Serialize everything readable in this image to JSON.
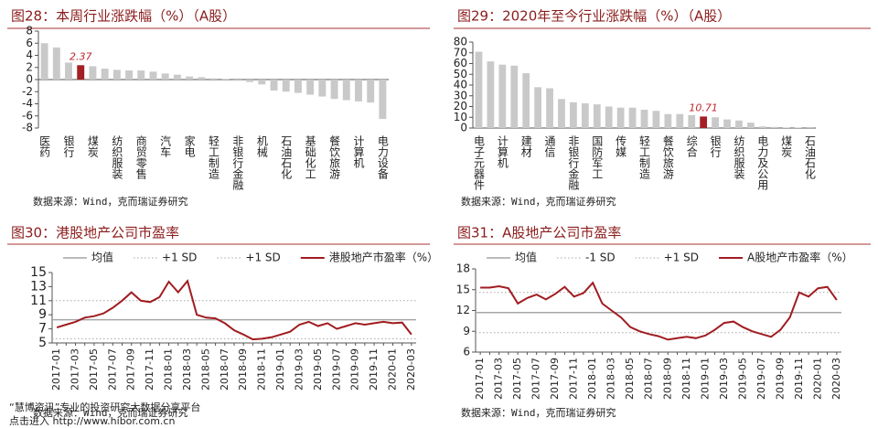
{
  "chart_data": [
    {
      "type": "bar",
      "title": "图28：本周行业涨跌幅（%）（A股）",
      "categories": [
        "医药",
        null,
        "银行",
        null,
        "煤炭",
        null,
        "纺织服装",
        null,
        "商贸零售",
        null,
        "汽车",
        null,
        "家电",
        null,
        "轻工制造",
        null,
        "非银行金融",
        null,
        "机械",
        null,
        "石油石化",
        null,
        "基础化工",
        null,
        "餐饮旅游",
        null,
        "计算机",
        null,
        "电力设备"
      ],
      "values": [
        6.0,
        5.3,
        2.8,
        2.37,
        2.2,
        1.8,
        1.6,
        1.5,
        1.5,
        1.3,
        1.0,
        0.8,
        0.5,
        0.4,
        0.2,
        0.1,
        -0.2,
        -0.4,
        -0.8,
        -1.8,
        -2.0,
        -2.2,
        -2.5,
        -2.8,
        -3.2,
        -3.4,
        -3.6,
        -3.8,
        -6.5
      ],
      "value_labels": [
        null,
        null,
        null,
        "2.37",
        null,
        null,
        null,
        null,
        null,
        null,
        null,
        null,
        null,
        null,
        null,
        null,
        null,
        null,
        null,
        null,
        null,
        null,
        null,
        null,
        null,
        null,
        null,
        null,
        null
      ],
      "colors": [
        "#c9c9c9",
        "#c9c9c9",
        "#c9c9c9",
        "#a31f24",
        "#c9c9c9",
        "#c9c9c9",
        "#c9c9c9",
        "#c9c9c9",
        "#c9c9c9",
        "#c9c9c9",
        "#c9c9c9",
        "#c9c9c9",
        "#c9c9c9",
        "#c9c9c9",
        "#c9c9c9",
        "#c9c9c9",
        "#c9c9c9",
        "#c9c9c9",
        "#c9c9c9",
        "#c9c9c9",
        "#c9c9c9",
        "#c9c9c9",
        "#c9c9c9",
        "#c9c9c9",
        "#c9c9c9",
        "#c9c9c9",
        "#c9c9c9",
        "#c9c9c9",
        "#c9c9c9"
      ],
      "ylim": [
        -8,
        8
      ],
      "yticks": [
        -8,
        -6,
        -4,
        -2,
        0,
        2,
        4,
        6,
        8
      ],
      "source": "数据来源：Wind，克而瑞证券研究"
    },
    {
      "type": "bar",
      "title": "图29：2020年至今行业涨跌幅（%）（A股）",
      "categories": [
        "电子元器件",
        null,
        "计算机",
        null,
        "建材",
        null,
        "通信",
        null,
        "非银行金融",
        null,
        "国防军工",
        null,
        "传媒",
        null,
        "轻工制造",
        null,
        "餐饮旅游",
        null,
        "综合",
        null,
        "银行",
        null,
        "纺织服装",
        null,
        "电力及公用",
        null,
        "煤炭",
        null,
        "石油石化"
      ],
      "values": [
        71,
        62,
        59,
        58,
        51,
        38,
        37,
        27,
        24,
        23,
        22,
        20,
        19,
        19,
        17,
        16,
        13,
        13,
        12,
        10.71,
        10,
        8,
        7,
        5,
        1.5,
        1,
        0.5,
        0.4,
        0.2
      ],
      "value_labels": [
        null,
        null,
        null,
        null,
        null,
        null,
        null,
        null,
        null,
        null,
        null,
        null,
        null,
        null,
        null,
        null,
        null,
        null,
        null,
        "10.71",
        null,
        null,
        null,
        null,
        null,
        null,
        null,
        null,
        null
      ],
      "colors": [
        "#c9c9c9",
        "#c9c9c9",
        "#c9c9c9",
        "#c9c9c9",
        "#c9c9c9",
        "#c9c9c9",
        "#c9c9c9",
        "#c9c9c9",
        "#c9c9c9",
        "#c9c9c9",
        "#c9c9c9",
        "#c9c9c9",
        "#c9c9c9",
        "#c9c9c9",
        "#c9c9c9",
        "#c9c9c9",
        "#c9c9c9",
        "#c9c9c9",
        "#c9c9c9",
        "#a31f24",
        "#c9c9c9",
        "#c9c9c9",
        "#c9c9c9",
        "#c9c9c9",
        "#c9c9c9",
        "#c9c9c9",
        "#c9c9c9",
        "#c9c9c9",
        "#c9c9c9"
      ],
      "ylim": [
        0,
        80
      ],
      "yticks": [
        0,
        10,
        20,
        30,
        40,
        50,
        60,
        70,
        80
      ],
      "source": "数据来源：Wind，克而瑞证券研究"
    },
    {
      "type": "line",
      "title": "图30：港股地产公司市盈率",
      "categories": [
        "2017-01",
        null,
        "2017-03",
        null,
        "2017-05",
        null,
        "2017-07",
        null,
        "2017-09",
        null,
        "2017-11",
        null,
        "2018-01",
        null,
        "2018-03",
        null,
        "2018-05",
        null,
        "2018-07",
        null,
        "2018-09",
        null,
        "2018-11",
        null,
        "2019-01",
        null,
        "2019-03",
        null,
        "2019-05",
        null,
        "2019-07",
        null,
        "2019-09",
        null,
        "2019-11",
        null,
        "2020-01",
        null,
        "2020-03"
      ],
      "hlines": [
        {
          "name": "均值",
          "value": 8.3,
          "color": "#a6a6a6",
          "dash": false
        },
        {
          "name": "+1 SD",
          "value": 11.0,
          "color": "#a6a6a6",
          "dash": true
        },
        {
          "name": "+1 SD",
          "value": 5.6,
          "color": "#a6a6a6",
          "dash": true
        }
      ],
      "series": [
        {
          "name": "港股地产市盈率（%）",
          "color": "#a01c20",
          "values": [
            7.2,
            7.6,
            8.0,
            8.6,
            8.8,
            9.2,
            10.0,
            11.0,
            12.2,
            11.0,
            10.8,
            11.5,
            13.7,
            12.2,
            13.8,
            9.0,
            8.6,
            8.5,
            7.8,
            6.8,
            6.2,
            5.5,
            5.6,
            5.8,
            6.2,
            6.6,
            7.6,
            8.0,
            7.4,
            7.8,
            7.0,
            7.4,
            7.8,
            7.6,
            7.8,
            8.0,
            7.8,
            7.9,
            6.2
          ]
        }
      ],
      "ylim": [
        5,
        15
      ],
      "yticks": [
        5,
        7,
        9,
        11,
        13,
        15
      ],
      "source": "数据来源：Wind，克而瑞证券研究"
    },
    {
      "type": "line",
      "title": "图31：A股地产公司市盈率",
      "categories": [
        "2017-01",
        null,
        "2017-03",
        null,
        "2017-05",
        null,
        "2017-07",
        null,
        "2017-09",
        null,
        "2017-11",
        null,
        "2018-01",
        null,
        "2018-03",
        null,
        "2018-05",
        null,
        "2018-07",
        null,
        "2018-09",
        null,
        "2018-11",
        null,
        "2019-01",
        null,
        "2019-03",
        null,
        "2019-05",
        null,
        "2019-07",
        null,
        "2019-09",
        null,
        "2019-11",
        null,
        "2020-01",
        null,
        "2020-03"
      ],
      "hlines": [
        {
          "name": "均值",
          "value": 11.7,
          "color": "#a6a6a6",
          "dash": false
        },
        {
          "name": "-1 SD",
          "value": 8.8,
          "color": "#a6a6a6",
          "dash": true
        },
        {
          "name": "+1 SD",
          "value": 14.6,
          "color": "#a6a6a6",
          "dash": true
        }
      ],
      "series": [
        {
          "name": "A股地产市盈率（%）",
          "color": "#a01c20",
          "values": [
            15.3,
            15.3,
            15.5,
            15.2,
            13.0,
            13.8,
            14.3,
            13.6,
            14.4,
            15.4,
            14.0,
            14.5,
            16.0,
            13.0,
            12.0,
            11.0,
            9.6,
            9.0,
            8.6,
            8.3,
            7.8,
            8.0,
            8.2,
            8.0,
            8.4,
            9.2,
            10.2,
            10.4,
            9.6,
            9.0,
            8.6,
            8.2,
            9.2,
            11.0,
            14.6,
            14.0,
            15.2,
            15.4,
            13.5
          ]
        }
      ],
      "ylim": [
        6,
        18
      ],
      "yticks": [
        6,
        9,
        12,
        15,
        18
      ],
      "source": "数据来源：Wind，克而瑞证券研究"
    }
  ],
  "watermark": {
    "line1": "“慧博资讯”专业的投资研究大数据分享平台",
    "line2": "点击进入 http://www.hibor.com.cn"
  }
}
